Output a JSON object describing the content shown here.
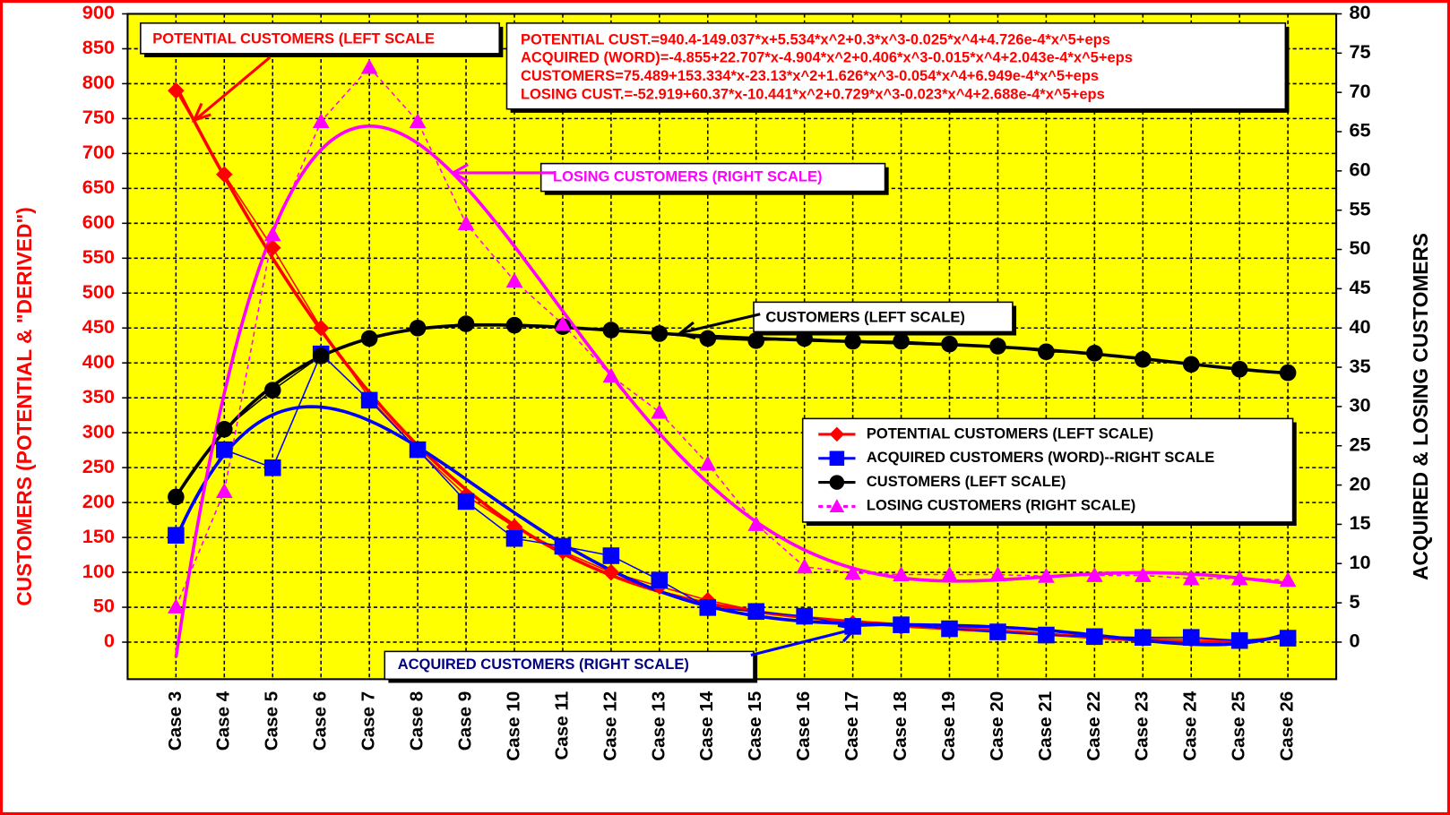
{
  "chart_data": {
    "type": "line",
    "ylabel": "CUSTOMERS (POTENTIAL & \"DERIVED\")",
    "y2label": "ACQUIRED & LOSING CUSTOMERS",
    "categories": [
      "Case 3",
      "Case 4",
      "Case 5",
      "Case 6",
      "Case 7",
      "Case 8",
      "Case 9",
      "Case 10",
      "Case 11",
      "Case 12",
      "Case 13",
      "Case 14",
      "Case 15",
      "Case 16",
      "Case 17",
      "Case 18",
      "Case 19",
      "Case 20",
      "Case 21",
      "Case 22",
      "Case 23",
      "Case 24",
      "Case 25",
      "Case 26"
    ],
    "series": [
      {
        "name": "POTENTIAL CUSTOMERS (LEFT SCALE)",
        "color": "#ff0000",
        "axis": "y",
        "marker": "diamond",
        "values": [
          790,
          670,
          565,
          450,
          350,
          275,
          210,
          165,
          130,
          100,
          80,
          60,
          45,
          35,
          27,
          22,
          18,
          14,
          10,
          7,
          5,
          4,
          3,
          5
        ]
      },
      {
        "name": "ACQUIRED CUSTOMERS (WORD)--RIGHT SCALE",
        "color": "#0000ff",
        "axis": "y2",
        "marker": "square",
        "values": [
          13.6,
          24.5,
          22.2,
          36.7,
          30.8,
          24.5,
          17.9,
          13.2,
          12.2,
          11,
          7.9,
          4.4,
          3.9,
          3.3,
          2,
          2.2,
          1.7,
          1.3,
          0.9,
          0.7,
          0.6,
          0.6,
          0.2,
          0.5
        ]
      },
      {
        "name": "CUSTOMERS (LEFT SCALE)",
        "color": "#000000",
        "axis": "y",
        "marker": "circle",
        "values": [
          208,
          305,
          361,
          410,
          435,
          450,
          456,
          454,
          452,
          447,
          442,
          435,
          432,
          435,
          431,
          431,
          427,
          424,
          416,
          414,
          405,
          398,
          391,
          386
        ]
      },
      {
        "name": "LOSING CUSTOMERS (RIGHT SCALE)",
        "color": "#ff00ff",
        "axis": "y2",
        "marker": "triangle",
        "line_style": "dashed",
        "values": [
          4.5,
          19.2,
          51.9,
          66.3,
          73.2,
          66.3,
          53.3,
          46,
          40.5,
          33.9,
          29.3,
          22.7,
          15,
          9.6,
          8.8,
          8.6,
          8.6,
          8.6,
          8.4,
          8.5,
          8.5,
          8.1,
          8.1,
          7.9
        ]
      }
    ],
    "fit": "polynomial degree 5",
    "ylim": [
      -53,
      900
    ],
    "yticks": [
      0,
      50,
      100,
      150,
      200,
      250,
      300,
      350,
      400,
      450,
      500,
      550,
      600,
      650,
      700,
      750,
      800,
      850,
      900
    ],
    "y2lim": [
      -4.72,
      80
    ],
    "y2ticks": [
      0,
      5,
      10,
      15,
      20,
      25,
      30,
      35,
      40,
      45,
      50,
      55,
      60,
      65,
      70,
      75,
      80
    ],
    "grid": true,
    "annotations": [
      {
        "text": "POTENTIAL CUSTOMERS (LEFT SCALE",
        "color": "#ff0000"
      },
      {
        "text": "LOSING CUSTOMERS (RIGHT SCALE)",
        "color": "#ff00ff"
      },
      {
        "text": "CUSTOMERS (LEFT SCALE)",
        "color": "#000000"
      },
      {
        "text": "ACQUIRED CUSTOMERS (RIGHT SCALE)",
        "color": "#000080"
      }
    ],
    "equations": [
      "POTENTIAL CUST.=940.4-149.037*x+5.534*x^2+0.3*x^3-0.025*x^4+4.726e-4*x^5+eps",
      "ACQUIRED (WORD)=-4.855+22.707*x-4.904*x^2+0.406*x^3-0.015*x^4+2.043e-4*x^5+eps",
      "CUSTOMERS=75.489+153.334*x-23.13*x^2+1.626*x^3-0.054*x^4+6.949e-4*x^5+eps",
      "LOSING CUST.=-52.919+60.37*x-10.441*x^2+0.729*x^3-0.023*x^4+2.688e-4*x^5+eps"
    ]
  }
}
